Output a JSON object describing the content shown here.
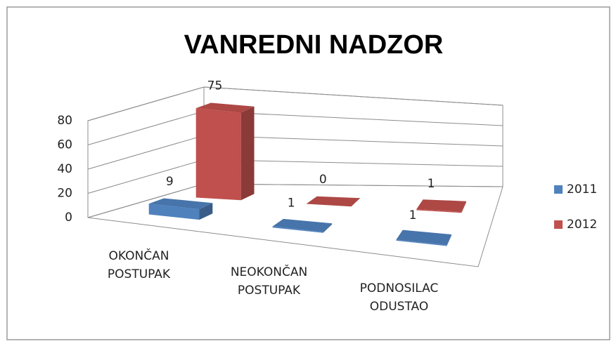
{
  "chart_data": {
    "type": "bar3d",
    "title": "VANREDNI NADZOR",
    "categories": [
      "OKONČAN POSTUPAK",
      "NEOKONČAN POSTUPAK",
      "PODNOSILAC ODUSTAO"
    ],
    "series": [
      {
        "name": "2011",
        "color": "#4f81bd",
        "values": [
          9,
          1,
          1
        ]
      },
      {
        "name": "2012",
        "color": "#c0504d",
        "values": [
          75,
          0,
          1
        ]
      }
    ],
    "ylim": [
      0,
      80
    ],
    "yticks": [
      0,
      20,
      40,
      60,
      80
    ],
    "grid": true,
    "legend": "right"
  }
}
